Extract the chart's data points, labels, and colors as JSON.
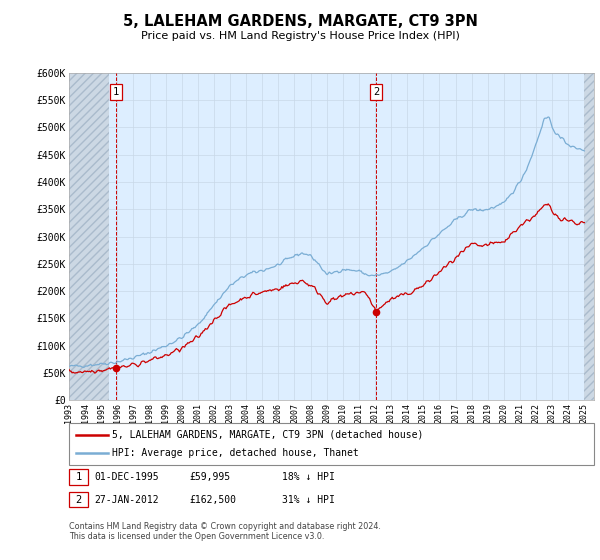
{
  "title": "5, LALEHAM GARDENS, MARGATE, CT9 3PN",
  "subtitle": "Price paid vs. HM Land Registry's House Price Index (HPI)",
  "ylabel_ticks": [
    "£0",
    "£50K",
    "£100K",
    "£150K",
    "£200K",
    "£250K",
    "£300K",
    "£350K",
    "£400K",
    "£450K",
    "£500K",
    "£550K",
    "£600K"
  ],
  "ytick_values": [
    0,
    50000,
    100000,
    150000,
    200000,
    250000,
    300000,
    350000,
    400000,
    450000,
    500000,
    550000,
    600000
  ],
  "sale1": {
    "date": "1995-12-01",
    "price": 59995,
    "label": "1",
    "hpi_pct": "18% ↓ HPI",
    "date_str": "01-DEC-1995",
    "price_str": "£59,995"
  },
  "sale2": {
    "date": "2012-01-27",
    "price": 162500,
    "label": "2",
    "hpi_pct": "31% ↓ HPI",
    "date_str": "27-JAN-2012",
    "price_str": "£162,500"
  },
  "hpi_color": "#7aadd4",
  "sale_color": "#cc0000",
  "grid_color": "#c8d8e8",
  "bg_color": "#ddeeff",
  "hatch_bg": "#d0d8e0",
  "marker_color": "#cc0000",
  "legend_label1": "5, LALEHAM GARDENS, MARGATE, CT9 3PN (detached house)",
  "legend_label2": "HPI: Average price, detached house, Thanet",
  "footer": "Contains HM Land Registry data © Crown copyright and database right 2024.\nThis data is licensed under the Open Government Licence v3.0.",
  "xstart": 1993,
  "xend": 2025,
  "ylim_max": 600000,
  "hpi_points": [
    [
      1993.0,
      62000
    ],
    [
      1994.0,
      64000
    ],
    [
      1995.0,
      67000
    ],
    [
      1995.9,
      70000
    ],
    [
      1997.0,
      78000
    ],
    [
      1998.0,
      88000
    ],
    [
      1999.0,
      100000
    ],
    [
      2000.0,
      115000
    ],
    [
      2001.0,
      138000
    ],
    [
      2002.0,
      175000
    ],
    [
      2003.0,
      210000
    ],
    [
      2004.0,
      230000
    ],
    [
      2005.0,
      238000
    ],
    [
      2006.0,
      248000
    ],
    [
      2007.0,
      265000
    ],
    [
      2007.5,
      270000
    ],
    [
      2008.0,
      265000
    ],
    [
      2008.5,
      250000
    ],
    [
      2009.0,
      230000
    ],
    [
      2009.5,
      235000
    ],
    [
      2010.0,
      240000
    ],
    [
      2011.0,
      237000
    ],
    [
      2011.5,
      230000
    ],
    [
      2012.0,
      228000
    ],
    [
      2013.0,
      235000
    ],
    [
      2014.0,
      255000
    ],
    [
      2015.0,
      280000
    ],
    [
      2016.0,
      305000
    ],
    [
      2017.0,
      330000
    ],
    [
      2018.0,
      350000
    ],
    [
      2018.5,
      348000
    ],
    [
      2019.0,
      350000
    ],
    [
      2020.0,
      360000
    ],
    [
      2021.0,
      400000
    ],
    [
      2021.5,
      430000
    ],
    [
      2022.0,
      470000
    ],
    [
      2022.5,
      515000
    ],
    [
      2022.8,
      520000
    ],
    [
      2023.0,
      500000
    ],
    [
      2023.5,
      480000
    ],
    [
      2024.0,
      470000
    ],
    [
      2024.5,
      460000
    ],
    [
      2025.0,
      460000
    ]
  ],
  "prop_points": [
    [
      1993.0,
      52000
    ],
    [
      1994.0,
      53000
    ],
    [
      1995.0,
      56000
    ],
    [
      1995.917,
      59995
    ],
    [
      1996.5,
      62000
    ],
    [
      1997.0,
      65000
    ],
    [
      1998.0,
      73000
    ],
    [
      1999.0,
      82000
    ],
    [
      2000.0,
      95000
    ],
    [
      2001.0,
      115000
    ],
    [
      2002.0,
      148000
    ],
    [
      2003.0,
      175000
    ],
    [
      2004.0,
      190000
    ],
    [
      2005.0,
      198000
    ],
    [
      2006.0,
      205000
    ],
    [
      2007.0,
      215000
    ],
    [
      2007.5,
      220000
    ],
    [
      2008.0,
      210000
    ],
    [
      2008.5,
      198000
    ],
    [
      2009.0,
      180000
    ],
    [
      2009.5,
      185000
    ],
    [
      2010.0,
      190000
    ],
    [
      2010.5,
      195000
    ],
    [
      2011.0,
      198000
    ],
    [
      2011.5,
      195000
    ],
    [
      2012.083,
      162500
    ],
    [
      2012.5,
      175000
    ],
    [
      2013.0,
      185000
    ],
    [
      2014.0,
      195000
    ],
    [
      2015.0,
      210000
    ],
    [
      2016.0,
      235000
    ],
    [
      2017.0,
      260000
    ],
    [
      2018.0,
      285000
    ],
    [
      2018.5,
      282000
    ],
    [
      2019.0,
      285000
    ],
    [
      2020.0,
      290000
    ],
    [
      2021.0,
      320000
    ],
    [
      2022.0,
      340000
    ],
    [
      2022.5,
      355000
    ],
    [
      2022.8,
      358000
    ],
    [
      2023.0,
      345000
    ],
    [
      2023.5,
      335000
    ],
    [
      2024.0,
      330000
    ],
    [
      2024.5,
      325000
    ],
    [
      2025.0,
      325000
    ]
  ]
}
